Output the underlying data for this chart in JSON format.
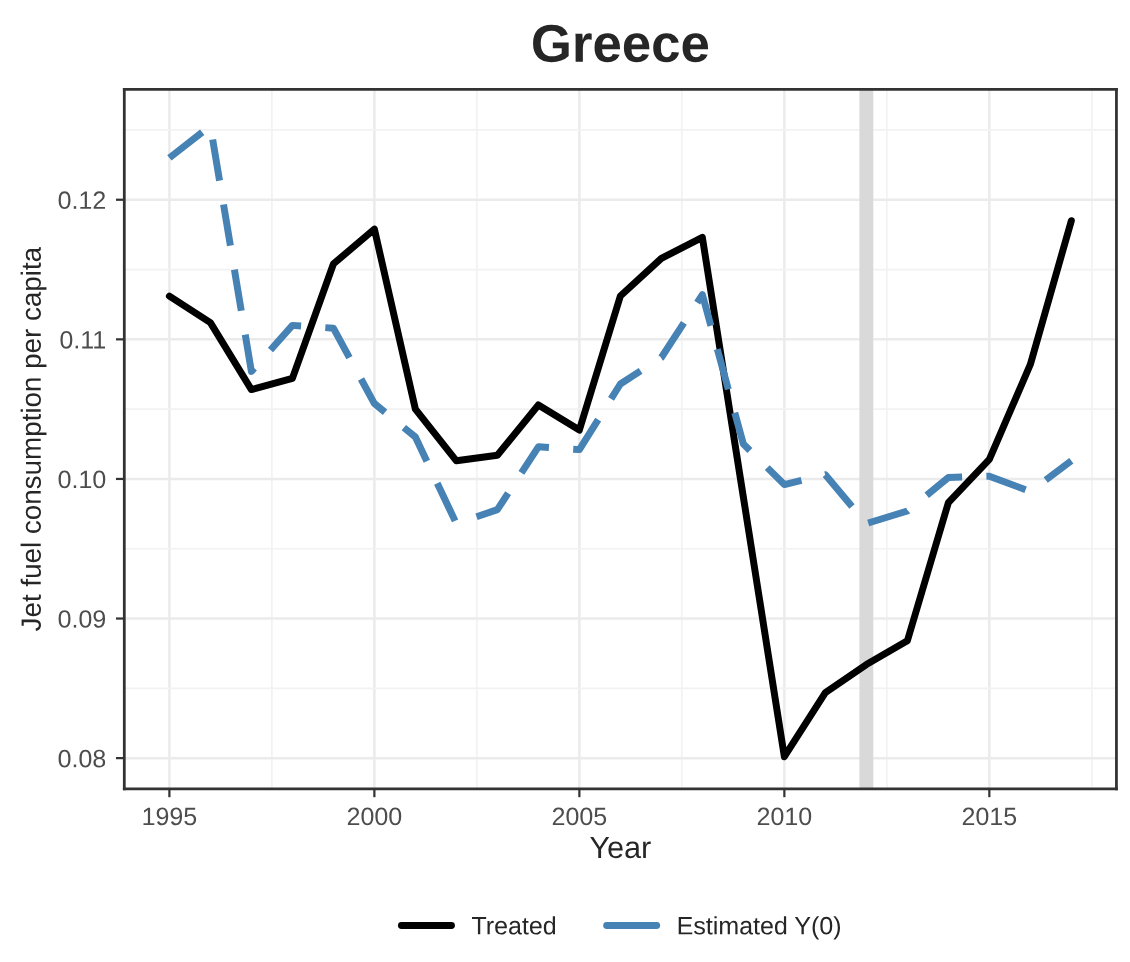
{
  "chart_data": {
    "type": "line",
    "title": "Greece",
    "xlabel": "Year",
    "ylabel": "Jet fuel consumption per capita",
    "x": [
      1995,
      1996,
      1997,
      1998,
      1999,
      2000,
      2001,
      2002,
      2003,
      2004,
      2005,
      2006,
      2007,
      2008,
      2009,
      2010,
      2011,
      2012,
      2013,
      2014,
      2015,
      2016,
      2017
    ],
    "series": [
      {
        "name": "Treated",
        "color": "#000000",
        "line_style": "solid",
        "values": [
          0.1131,
          0.1112,
          0.1064,
          0.1072,
          0.1154,
          0.1179,
          0.105,
          0.1013,
          0.1017,
          0.1053,
          0.1035,
          0.1131,
          0.1158,
          0.1173,
          0.0987,
          0.0801,
          0.0847,
          0.0867,
          0.0884,
          0.0983,
          0.1014,
          0.1082,
          0.1185
        ]
      },
      {
        "name": "Estimated Y(0)",
        "color": "#4682b4",
        "line_style": "dashed",
        "values": [
          0.123,
          0.1253,
          0.1077,
          0.111,
          0.1108,
          0.1054,
          0.103,
          0.0968,
          0.0978,
          0.1023,
          0.1021,
          0.1068,
          0.1087,
          0.1132,
          0.1025,
          0.0996,
          0.1003,
          0.0968,
          0.0977,
          0.1001,
          0.1002,
          0.0991,
          0.1013
        ]
      }
    ],
    "xlim": [
      1993.9,
      2018.1
    ],
    "xticks": [
      1995,
      2000,
      2005,
      2010,
      2015
    ],
    "ylim": [
      0.0778,
      0.1279
    ],
    "yticks": [
      {
        "value": 0.08,
        "label": "0.08"
      },
      {
        "value": 0.09,
        "label": "0.09"
      },
      {
        "value": 0.1,
        "label": "0.10"
      },
      {
        "value": 0.11,
        "label": "0.11"
      },
      {
        "value": 0.12,
        "label": "0.12"
      }
    ],
    "ref_lines": [
      {
        "axis": "x",
        "value": 2012,
        "color": "#d9d9d9"
      }
    ],
    "grid": true,
    "legend": "bottom"
  }
}
